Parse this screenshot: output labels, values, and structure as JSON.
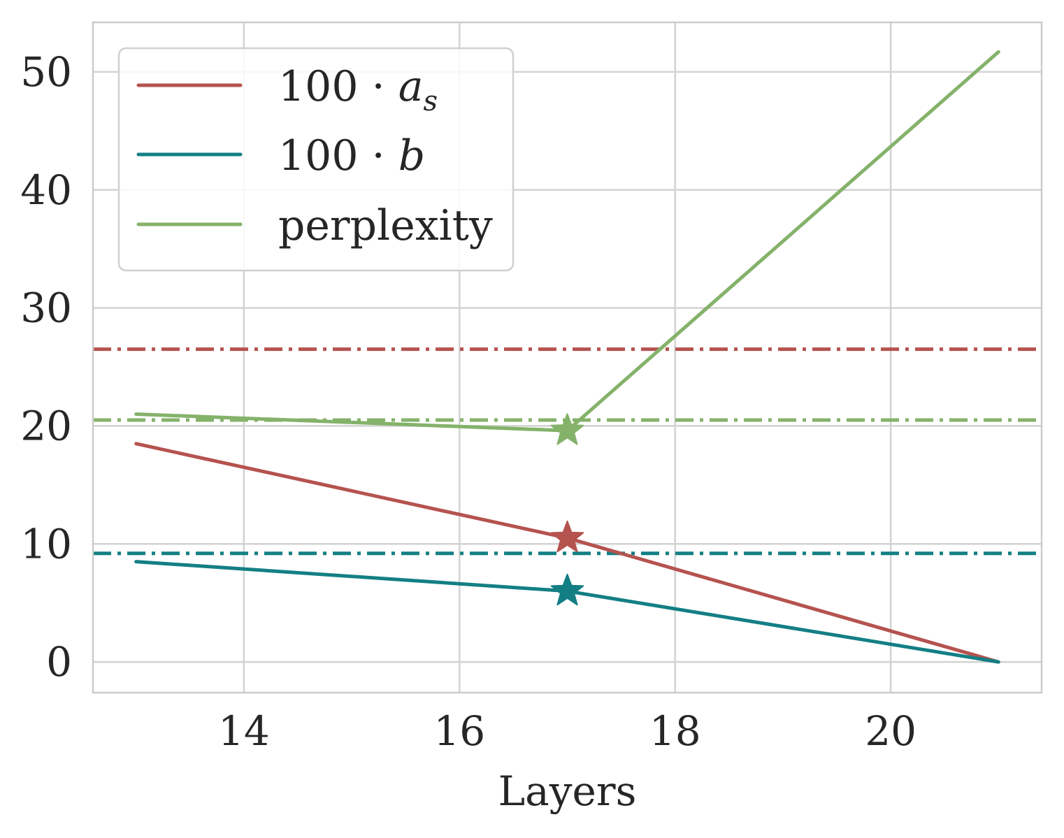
{
  "chart_data": {
    "type": "line",
    "title": "",
    "xlabel": "Layers",
    "ylabel": "",
    "xlim": [
      12.6,
      21.4
    ],
    "ylim": [
      -2.6,
      54.2
    ],
    "xticks": [
      14,
      16,
      18,
      20
    ],
    "yticks": [
      0,
      10,
      20,
      30,
      40,
      50
    ],
    "grid": true,
    "legend_position": "top-left",
    "series": [
      {
        "key": "as",
        "name": "100 · a_s",
        "legend": {
          "prefix": "100 · ",
          "var": "a",
          "sub": "s"
        },
        "color": "#b5534f",
        "x": [
          13,
          17,
          21
        ],
        "y": [
          18.5,
          10.5,
          0
        ],
        "marker_index": 1,
        "baseline": 26.5
      },
      {
        "key": "b",
        "name": "100 · b",
        "legend": {
          "prefix": "100 · ",
          "var": "b",
          "sub": ""
        },
        "color": "#137f84",
        "x": [
          13,
          17,
          21
        ],
        "y": [
          8.5,
          6.0,
          0
        ],
        "marker_index": 1,
        "baseline": 9.2
      },
      {
        "key": "ppl",
        "name": "perplexity",
        "legend": {
          "prefix": "perplexity",
          "var": "",
          "sub": ""
        },
        "color": "#84b26a",
        "x": [
          13,
          17,
          21
        ],
        "y": [
          21.0,
          19.6,
          51.7
        ],
        "marker_index": 1,
        "baseline": 20.5
      }
    ]
  }
}
